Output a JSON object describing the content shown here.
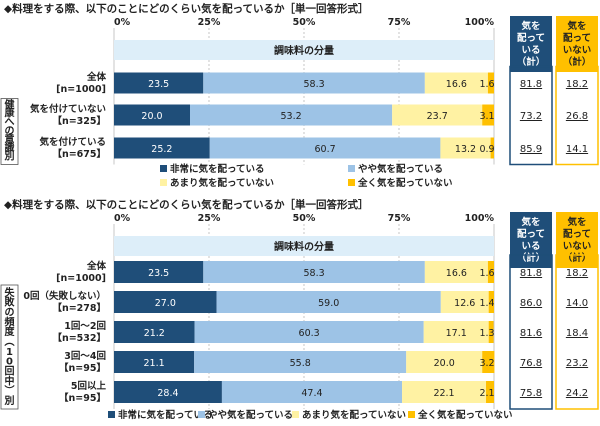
{
  "colors": {
    "very": "#1f4e79",
    "somewhat": "#9dc3e6",
    "notmuch": "#fff2a3",
    "notatall": "#ffc000",
    "subtitle_band": "#ddeef9",
    "care_header": "#1f4e79",
    "nocare_header": "#ffc000"
  },
  "legend_labels": [
    "非常に気を配っている",
    "やや気を配っている",
    "あまり気を配っていない",
    "全く気を配っていない"
  ],
  "chart_data": [
    {
      "type": "bar",
      "stacked": true,
      "orientation": "horizontal",
      "title": "◆料理をする際、以下のことにどのくらい気を配っているか［単一回答形式］",
      "subtitle": "調味料の分量",
      "xlim": [
        0,
        100
      ],
      "x_ticks": [
        "0%",
        "25%",
        "50%",
        "75%",
        "100%"
      ],
      "group_label": "健康への意識別",
      "summary_headers": [
        "気を配っている（計）",
        "気を配っていない（計）"
      ],
      "rows": [
        {
          "label": "全体",
          "n": "[n=1000]",
          "values": [
            23.5,
            58.3,
            16.6,
            1.6
          ],
          "care": "81.8",
          "nocare": "18.2"
        },
        {
          "label": "気を付けていない",
          "n": "【n=325】",
          "values": [
            20.0,
            53.2,
            23.7,
            3.1
          ],
          "care": "73.2",
          "nocare": "26.8"
        },
        {
          "label": "気を付けている",
          "n": "【n=675】",
          "values": [
            25.2,
            60.7,
            13.2,
            0.9
          ],
          "care": "85.9",
          "nocare": "14.1"
        }
      ]
    },
    {
      "type": "bar",
      "stacked": true,
      "orientation": "horizontal",
      "title": "◆料理をする際、以下のことにどのくらい気を配っているか［単一回答形式］",
      "subtitle": "調味料の分量",
      "xlim": [
        0,
        100
      ],
      "x_ticks": [
        "0%",
        "25%",
        "50%",
        "75%",
        "100%"
      ],
      "group_label": "失敗の頻度（10回中）別",
      "summary_headers": [
        "気を配っている（計）",
        "気を配っていない（計）"
      ],
      "rows": [
        {
          "label": "全体",
          "n": "[n=1000]",
          "values": [
            23.5,
            58.3,
            16.6,
            1.6
          ],
          "care": "81.8",
          "nocare": "18.2"
        },
        {
          "label": "0回（失敗しない）",
          "n": "【n=278】",
          "values": [
            27.0,
            59.0,
            12.6,
            1.4
          ],
          "care": "86.0",
          "nocare": "14.0"
        },
        {
          "label": "1回～2回",
          "n": "【n=532】",
          "values": [
            21.2,
            60.3,
            17.1,
            1.3
          ],
          "care": "81.6",
          "nocare": "18.4"
        },
        {
          "label": "3回～4回",
          "n": "【n=95】",
          "values": [
            21.1,
            55.8,
            20.0,
            3.2
          ],
          "care": "76.8",
          "nocare": "23.2"
        },
        {
          "label": "5回以上",
          "n": "【n=95】",
          "values": [
            28.4,
            47.4,
            22.1,
            2.1
          ],
          "care": "75.8",
          "nocare": "24.2"
        }
      ]
    }
  ]
}
